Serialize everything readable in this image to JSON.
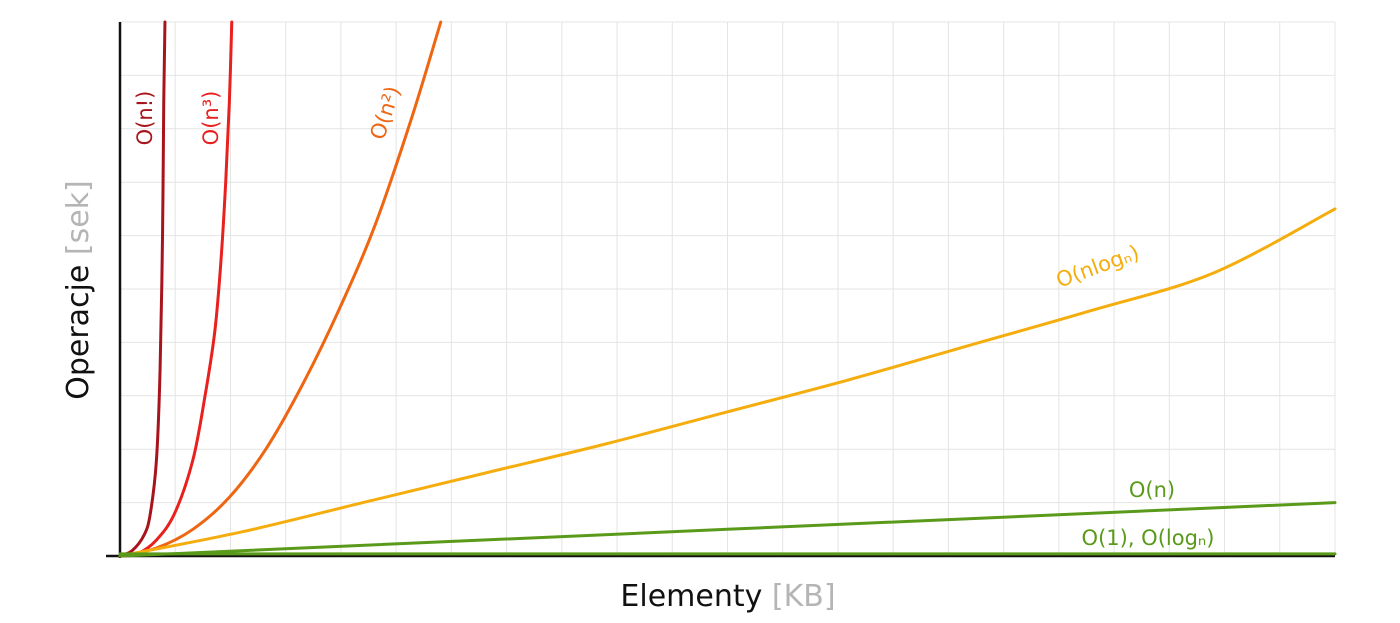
{
  "chart_data": {
    "type": "line",
    "title": "",
    "xlabel": "Elementy",
    "xlabel_unit": "[KB]",
    "ylabel": "Operacje",
    "ylabel_unit": "[sek]",
    "xlim": [
      0,
      100
    ],
    "ylim": [
      0,
      100
    ],
    "grid": true,
    "legend": "inline labels on curves",
    "series": [
      {
        "name": "O(n!)",
        "color": "#a8141c",
        "x": [
          0,
          1,
          2,
          2.5,
          3,
          3.3,
          3.5,
          3.6,
          3.7
        ],
        "y": [
          0,
          1,
          4,
          8,
          18,
          35,
          60,
          85,
          100
        ]
      },
      {
        "name": "O(n³)",
        "color": "#e8201e",
        "x": [
          0,
          1.5,
          3,
          4.5,
          6,
          7,
          7.8,
          8.3,
          8.7,
          9,
          9.2
        ],
        "y": [
          0,
          0.5,
          3,
          8,
          18,
          30,
          42,
          55,
          70,
          85,
          100
        ]
      },
      {
        "name": "O(n²)",
        "color": "#ee6512",
        "x": [
          0,
          3,
          6,
          9,
          12,
          15,
          18,
          21,
          24,
          26.4
        ],
        "y": [
          0,
          1.5,
          5,
          11,
          20,
          32,
          46,
          62,
          82,
          100
        ]
      },
      {
        "name": "O(nlogₙ)",
        "color": "#f5ad0e",
        "x": [
          0,
          10,
          20,
          30,
          40,
          50,
          60,
          70,
          80,
          90,
          100
        ],
        "y": [
          0,
          4.5,
          10,
          15.5,
          21,
          27,
          33,
          39.5,
          46,
          53,
          65
        ]
      },
      {
        "name": "O(n)",
        "color": "#5a9a1b",
        "x": [
          0,
          100
        ],
        "y": [
          0,
          10
        ]
      },
      {
        "name": "O(1), O(logₙ)",
        "color": "#5a9a1b",
        "x": [
          0,
          100
        ],
        "y": [
          0.4,
          0.4
        ]
      }
    ]
  }
}
